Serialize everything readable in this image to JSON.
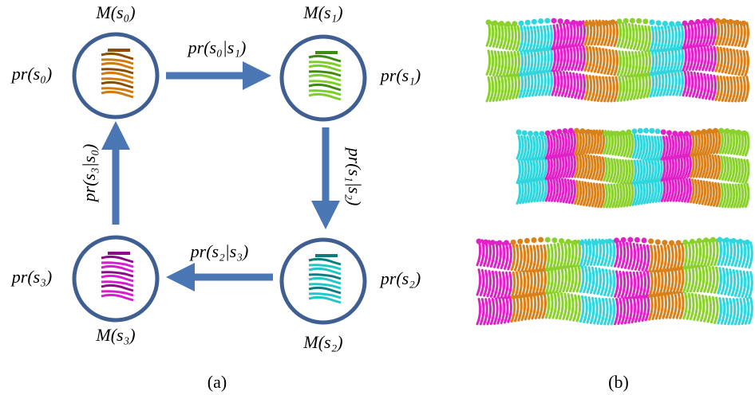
{
  "nodes": [
    {
      "model": "M(s₀)",
      "prob": "pr(s₀)"
    },
    {
      "model": "M(s₁)",
      "prob": "pr(s₁)"
    },
    {
      "model": "M(s₂)",
      "prob": "pr(s₂)"
    },
    {
      "model": "M(s₃)",
      "prob": "pr(s₃)"
    }
  ],
  "edges": [
    {
      "label": "pr(s₀|s₁)"
    },
    {
      "label": "pr(s₁|s₂)"
    },
    {
      "label": "pr(s₂|s₃)"
    },
    {
      "label": "pr(s₃|s₀)"
    }
  ],
  "captions": [
    "(a)",
    "(b)"
  ]
}
